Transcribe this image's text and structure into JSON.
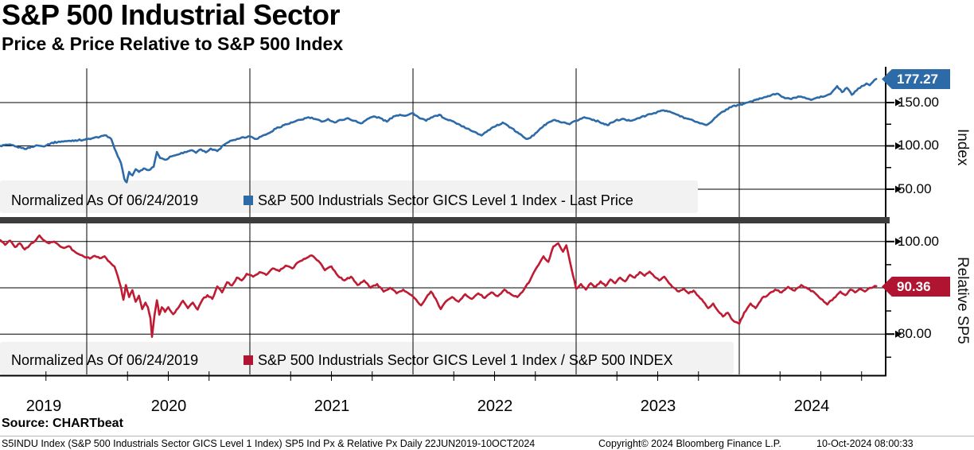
{
  "header": {
    "title": "S&P 500 Industrial Sector",
    "subtitle": "Price & Price Relative to S&P 500 Index"
  },
  "panels": [
    {
      "axis_title": "Index",
      "tick_labels": [
        "150.00",
        "100.00",
        "50.00"
      ],
      "tag": "177.27",
      "accent_color": "#2d6ba8",
      "legend": {
        "normalized_label": "Normalized As Of 06/24/2019",
        "series_label": "S&P 500 Industrials Sector GICS Level 1 Index - Last Price"
      }
    },
    {
      "axis_title": "Relative SP5",
      "tick_labels": [
        "100.00",
        "80.00"
      ],
      "tag": "90.36",
      "accent_color": "#b01430",
      "legend": {
        "normalized_label": "Normalized As Of 06/24/2019",
        "series_label": "S&P 500 Industrials Sector GICS Level 1 Index / S&P 500 INDEX"
      }
    }
  ],
  "x_axis": {
    "years": [
      "2019",
      "2020",
      "2021",
      "2022",
      "2023",
      "2024"
    ]
  },
  "footer": {
    "source": "Source: CHARTbeat",
    "description": "S5INDU Index (S&P 500 Industrials Sector GICS Level 1 Index) SP5 Ind Px & Relative Px  Daily 22JUN2019-10OCT2024",
    "copyright": "Copyright© 2024 Bloomberg Finance L.P.",
    "timestamp": "10-Oct-2024 08:00:33"
  },
  "chart_data": [
    {
      "type": "line",
      "panel": "price",
      "title": "S&P 500 Industrials Sector GICS Level 1 Index - Last Price",
      "normalized_as_of": "06/24/2019",
      "x_unit": "decimal_year",
      "x_range": [
        2019.47,
        2024.89
      ],
      "x_year_gridlines": [
        2020,
        2021,
        2022,
        2023,
        2024
      ],
      "ylim": [
        40,
        190
      ],
      "yticks": [
        150,
        100,
        50
      ],
      "yticks_minor": [
        175,
        125,
        75
      ],
      "ylabel": "Index",
      "grid": true,
      "legend_position": "bottom-strip",
      "last_value": 177.27,
      "color": "#2d6ba8",
      "points": [
        [
          2019.47,
          100
        ],
        [
          2019.52,
          101.5
        ],
        [
          2019.56,
          99.5
        ],
        [
          2019.6,
          97.5
        ],
        [
          2019.63,
          96.5
        ],
        [
          2019.66,
          99
        ],
        [
          2019.7,
          100.5
        ],
        [
          2019.73,
          99.5
        ],
        [
          2019.78,
          103
        ],
        [
          2019.83,
          105
        ],
        [
          2019.88,
          105.5
        ],
        [
          2019.93,
          106.5
        ],
        [
          2019.98,
          107
        ],
        [
          2020.03,
          108.5
        ],
        [
          2020.08,
          110.5
        ],
        [
          2020.12,
          112
        ],
        [
          2020.15,
          108
        ],
        [
          2020.17,
          97
        ],
        [
          2020.19,
          88
        ],
        [
          2020.21,
          80
        ],
        [
          2020.23,
          62
        ],
        [
          2020.245,
          58
        ],
        [
          2020.26,
          70
        ],
        [
          2020.28,
          66
        ],
        [
          2020.3,
          73
        ],
        [
          2020.32,
          70
        ],
        [
          2020.35,
          74
        ],
        [
          2020.38,
          72
        ],
        [
          2020.41,
          76
        ],
        [
          2020.43,
          93
        ],
        [
          2020.45,
          86
        ],
        [
          2020.48,
          84
        ],
        [
          2020.52,
          88
        ],
        [
          2020.56,
          90
        ],
        [
          2020.6,
          93
        ],
        [
          2020.64,
          95
        ],
        [
          2020.67,
          92
        ],
        [
          2020.7,
          96
        ],
        [
          2020.73,
          92.5
        ],
        [
          2020.76,
          97
        ],
        [
          2020.8,
          94
        ],
        [
          2020.84,
          101
        ],
        [
          2020.88,
          106
        ],
        [
          2020.92,
          108
        ],
        [
          2020.96,
          110
        ],
        [
          2021.0,
          111
        ],
        [
          2021.04,
          108
        ],
        [
          2021.08,
          112
        ],
        [
          2021.12,
          115
        ],
        [
          2021.16,
          120
        ],
        [
          2021.21,
          124
        ],
        [
          2021.26,
          127
        ],
        [
          2021.31,
          130
        ],
        [
          2021.36,
          133
        ],
        [
          2021.4,
          131
        ],
        [
          2021.44,
          128
        ],
        [
          2021.48,
          131
        ],
        [
          2021.52,
          127
        ],
        [
          2021.56,
          130
        ],
        [
          2021.6,
          132
        ],
        [
          2021.64,
          129
        ],
        [
          2021.68,
          126
        ],
        [
          2021.72,
          131
        ],
        [
          2021.76,
          134
        ],
        [
          2021.8,
          132
        ],
        [
          2021.84,
          128
        ],
        [
          2021.88,
          134
        ],
        [
          2021.92,
          136
        ],
        [
          2021.96,
          135
        ],
        [
          2022.0,
          138
        ],
        [
          2022.04,
          132
        ],
        [
          2022.08,
          129
        ],
        [
          2022.12,
          133
        ],
        [
          2022.16,
          136
        ],
        [
          2022.2,
          131
        ],
        [
          2022.25,
          128
        ],
        [
          2022.29,
          124
        ],
        [
          2022.33,
          120
        ],
        [
          2022.38,
          116
        ],
        [
          2022.42,
          112
        ],
        [
          2022.46,
          118
        ],
        [
          2022.5,
          122
        ],
        [
          2022.55,
          127
        ],
        [
          2022.6,
          121
        ],
        [
          2022.65,
          114
        ],
        [
          2022.7,
          108
        ],
        [
          2022.74,
          112
        ],
        [
          2022.78,
          120
        ],
        [
          2022.83,
          127
        ],
        [
          2022.87,
          130
        ],
        [
          2022.91,
          127
        ],
        [
          2022.96,
          125
        ],
        [
          2023.0,
          129
        ],
        [
          2023.05,
          133
        ],
        [
          2023.09,
          131
        ],
        [
          2023.14,
          128
        ],
        [
          2023.19,
          124
        ],
        [
          2023.24,
          129
        ],
        [
          2023.28,
          131
        ],
        [
          2023.33,
          129
        ],
        [
          2023.38,
          132
        ],
        [
          2023.43,
          135
        ],
        [
          2023.48,
          138
        ],
        [
          2023.53,
          141
        ],
        [
          2023.58,
          139
        ],
        [
          2023.62,
          136
        ],
        [
          2023.67,
          132
        ],
        [
          2023.72,
          129
        ],
        [
          2023.76,
          126
        ],
        [
          2023.8,
          124
        ],
        [
          2023.84,
          130
        ],
        [
          2023.88,
          137
        ],
        [
          2023.92,
          142
        ],
        [
          2023.96,
          146
        ],
        [
          2024.0,
          147
        ],
        [
          2024.05,
          150
        ],
        [
          2024.1,
          153
        ],
        [
          2024.15,
          156
        ],
        [
          2024.2,
          159
        ],
        [
          2024.24,
          160
        ],
        [
          2024.28,
          155
        ],
        [
          2024.32,
          154
        ],
        [
          2024.36,
          157
        ],
        [
          2024.4,
          156
        ],
        [
          2024.44,
          153
        ],
        [
          2024.48,
          156
        ],
        [
          2024.52,
          157
        ],
        [
          2024.56,
          160
        ],
        [
          2024.6,
          169
        ],
        [
          2024.63,
          162
        ],
        [
          2024.66,
          167
        ],
        [
          2024.69,
          159
        ],
        [
          2024.72,
          164
        ],
        [
          2024.75,
          169
        ],
        [
          2024.78,
          172
        ],
        [
          2024.8,
          170
        ],
        [
          2024.82,
          174
        ],
        [
          2024.84,
          177.27
        ]
      ]
    },
    {
      "type": "line",
      "panel": "relative",
      "title": "S&P 500 Industrials Sector GICS Level 1 Index / S&P 500 INDEX",
      "normalized_as_of": "06/24/2019",
      "x_unit": "decimal_year",
      "x_range": [
        2019.47,
        2024.89
      ],
      "x_year_gridlines": [
        2020,
        2021,
        2022,
        2023,
        2024
      ],
      "ylim": [
        73,
        103
      ],
      "yticks": [
        100,
        90,
        80
      ],
      "yticks_minor": [
        95,
        85,
        75
      ],
      "ylabel": "Relative SP5",
      "grid": true,
      "legend_position": "bottom-strip",
      "last_value": 90.36,
      "color": "#bf1b33",
      "points": [
        [
          2019.47,
          100.3
        ],
        [
          2019.5,
          99.3
        ],
        [
          2019.53,
          100.2
        ],
        [
          2019.56,
          98.8
        ],
        [
          2019.59,
          99.6
        ],
        [
          2019.62,
          98.3
        ],
        [
          2019.65,
          99.2
        ],
        [
          2019.68,
          100.0
        ],
        [
          2019.71,
          101.3
        ],
        [
          2019.74,
          100.2
        ],
        [
          2019.77,
          99.6
        ],
        [
          2019.8,
          100.0
        ],
        [
          2019.83,
          99.2
        ],
        [
          2019.86,
          98.6
        ],
        [
          2019.89,
          99.0
        ],
        [
          2019.92,
          98.0
        ],
        [
          2019.95,
          97.3
        ],
        [
          2019.98,
          96.8
        ],
        [
          2020.02,
          96.3
        ],
        [
          2020.05,
          96.9
        ],
        [
          2020.08,
          96.4
        ],
        [
          2020.11,
          96.8
        ],
        [
          2020.14,
          95.6
        ],
        [
          2020.17,
          94.6
        ],
        [
          2020.19,
          92.5
        ],
        [
          2020.21,
          90.0
        ],
        [
          2020.225,
          87.4
        ],
        [
          2020.24,
          90.6
        ],
        [
          2020.26,
          88.0
        ],
        [
          2020.28,
          89.5
        ],
        [
          2020.3,
          87.0
        ],
        [
          2020.32,
          88.3
        ],
        [
          2020.34,
          85.4
        ],
        [
          2020.36,
          86.8
        ],
        [
          2020.375,
          85.8
        ],
        [
          2020.39,
          83.5
        ],
        [
          2020.4,
          79.4
        ],
        [
          2020.415,
          84.0
        ],
        [
          2020.43,
          87.3
        ],
        [
          2020.445,
          84.2
        ],
        [
          2020.46,
          85.8
        ],
        [
          2020.48,
          84.8
        ],
        [
          2020.5,
          85.8
        ],
        [
          2020.53,
          84.3
        ],
        [
          2020.56,
          85.6
        ],
        [
          2020.59,
          87.2
        ],
        [
          2020.62,
          85.6
        ],
        [
          2020.65,
          86.8
        ],
        [
          2020.68,
          85.3
        ],
        [
          2020.71,
          87.5
        ],
        [
          2020.74,
          88.4
        ],
        [
          2020.77,
          87.6
        ],
        [
          2020.8,
          90.3
        ],
        [
          2020.83,
          89.0
        ],
        [
          2020.86,
          91.2
        ],
        [
          2020.89,
          90.5
        ],
        [
          2020.92,
          92.2
        ],
        [
          2020.95,
          91.6
        ],
        [
          2020.98,
          93.0
        ],
        [
          2021.02,
          92.4
        ],
        [
          2021.06,
          93.4
        ],
        [
          2021.1,
          92.8
        ],
        [
          2021.14,
          94.2
        ],
        [
          2021.18,
          93.6
        ],
        [
          2021.22,
          94.8
        ],
        [
          2021.26,
          94.2
        ],
        [
          2021.3,
          95.6
        ],
        [
          2021.34,
          96.3
        ],
        [
          2021.38,
          97.0
        ],
        [
          2021.42,
          95.8
        ],
        [
          2021.46,
          93.8
        ],
        [
          2021.5,
          94.6
        ],
        [
          2021.54,
          92.6
        ],
        [
          2021.58,
          91.6
        ],
        [
          2021.62,
          92.4
        ],
        [
          2021.66,
          90.6
        ],
        [
          2021.7,
          91.6
        ],
        [
          2021.74,
          90.0
        ],
        [
          2021.78,
          90.8
        ],
        [
          2021.82,
          89.2
        ],
        [
          2021.86,
          90.0
        ],
        [
          2021.9,
          88.8
        ],
        [
          2021.94,
          89.6
        ],
        [
          2021.98,
          88.6
        ],
        [
          2022.02,
          87.4
        ],
        [
          2022.05,
          86.2
        ],
        [
          2022.08,
          87.8
        ],
        [
          2022.11,
          89.2
        ],
        [
          2022.14,
          87.6
        ],
        [
          2022.17,
          85.4
        ],
        [
          2022.2,
          87.0
        ],
        [
          2022.24,
          88.0
        ],
        [
          2022.28,
          87.0
        ],
        [
          2022.32,
          88.6
        ],
        [
          2022.36,
          87.6
        ],
        [
          2022.4,
          88.8
        ],
        [
          2022.44,
          87.8
        ],
        [
          2022.48,
          89.0
        ],
        [
          2022.52,
          88.2
        ],
        [
          2022.56,
          89.6
        ],
        [
          2022.6,
          88.6
        ],
        [
          2022.64,
          88.0
        ],
        [
          2022.68,
          89.6
        ],
        [
          2022.72,
          91.8
        ],
        [
          2022.76,
          94.5
        ],
        [
          2022.8,
          96.8
        ],
        [
          2022.83,
          95.6
        ],
        [
          2022.86,
          98.9
        ],
        [
          2022.89,
          99.6
        ],
        [
          2022.92,
          97.8
        ],
        [
          2022.94,
          99.2
        ],
        [
          2022.96,
          96.0
        ],
        [
          2022.98,
          92.8
        ],
        [
          2023.0,
          89.8
        ],
        [
          2023.03,
          90.8
        ],
        [
          2023.06,
          89.6
        ],
        [
          2023.09,
          91.0
        ],
        [
          2023.12,
          90.2
        ],
        [
          2023.15,
          91.4
        ],
        [
          2023.18,
          90.4
        ],
        [
          2023.21,
          91.8
        ],
        [
          2023.24,
          91.0
        ],
        [
          2023.27,
          92.2
        ],
        [
          2023.3,
          91.4
        ],
        [
          2023.33,
          92.8
        ],
        [
          2023.36,
          92.2
        ],
        [
          2023.39,
          93.4
        ],
        [
          2023.42,
          92.6
        ],
        [
          2023.45,
          93.5
        ],
        [
          2023.48,
          92.4
        ],
        [
          2023.51,
          91.6
        ],
        [
          2023.54,
          92.4
        ],
        [
          2023.57,
          91.0
        ],
        [
          2023.6,
          90.0
        ],
        [
          2023.63,
          89.2
        ],
        [
          2023.66,
          89.8
        ],
        [
          2023.69,
          88.8
        ],
        [
          2023.72,
          89.4
        ],
        [
          2023.75,
          88.2
        ],
        [
          2023.78,
          87.0
        ],
        [
          2023.81,
          85.6
        ],
        [
          2023.84,
          86.6
        ],
        [
          2023.87,
          85.0
        ],
        [
          2023.9,
          83.8
        ],
        [
          2023.93,
          84.6
        ],
        [
          2023.96,
          83.0
        ],
        [
          2024.0,
          82.2
        ],
        [
          2024.03,
          84.6
        ],
        [
          2024.07,
          86.6
        ],
        [
          2024.1,
          85.6
        ],
        [
          2024.14,
          87.8
        ],
        [
          2024.18,
          88.6
        ],
        [
          2024.22,
          89.6
        ],
        [
          2024.26,
          89.0
        ],
        [
          2024.3,
          90.2
        ],
        [
          2024.34,
          89.4
        ],
        [
          2024.38,
          90.6
        ],
        [
          2024.42,
          89.8
        ],
        [
          2024.46,
          89.0
        ],
        [
          2024.5,
          87.6
        ],
        [
          2024.54,
          86.4
        ],
        [
          2024.58,
          87.8
        ],
        [
          2024.62,
          89.2
        ],
        [
          2024.65,
          88.4
        ],
        [
          2024.68,
          89.6
        ],
        [
          2024.71,
          89.0
        ],
        [
          2024.74,
          89.8
        ],
        [
          2024.77,
          89.2
        ],
        [
          2024.8,
          90.0
        ],
        [
          2024.84,
          90.36
        ]
      ]
    }
  ]
}
